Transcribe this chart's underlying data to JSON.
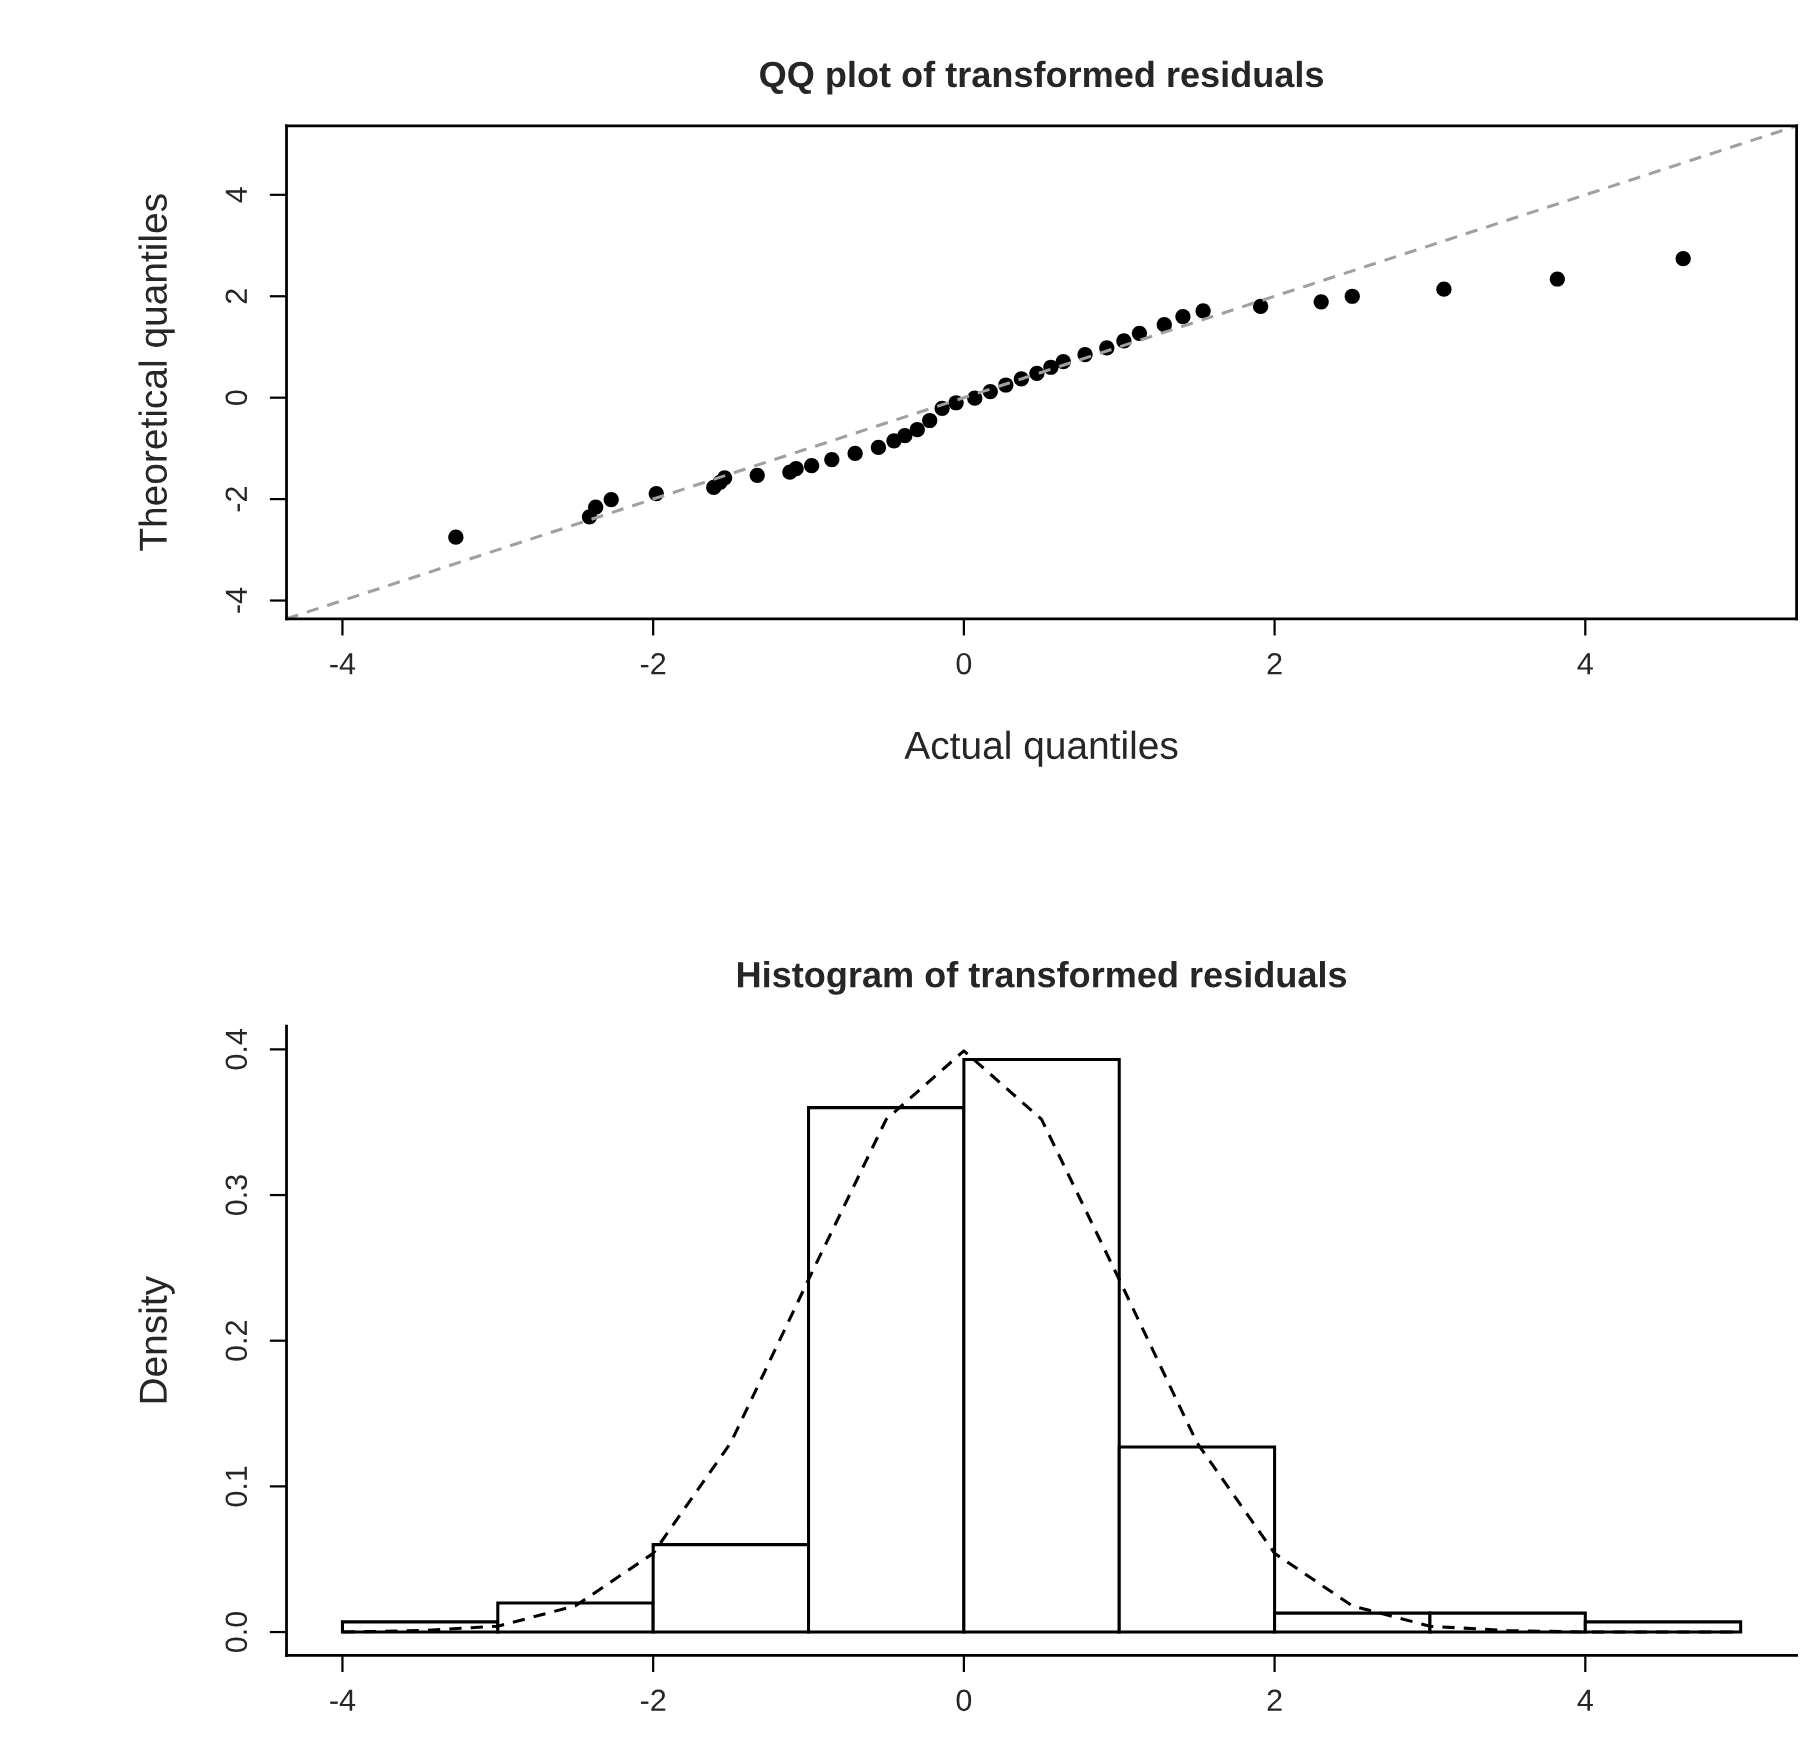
{
  "chart_data": [
    {
      "type": "scatter",
      "title": "QQ plot of transformed residuals",
      "xlabel": "Actual quantiles",
      "ylabel": "Theoretical quantiles",
      "xlim": [
        -4.36,
        5.36
      ],
      "ylim": [
        -4.36,
        5.36
      ],
      "xticks": [
        -4,
        -2,
        0,
        2,
        4
      ],
      "yticks": [
        -4,
        -2,
        0,
        2,
        4
      ],
      "series": [
        {
          "type": "scatter",
          "color": "#000000",
          "marker": "circle",
          "x": [
            -3.27,
            -2.41,
            -2.37,
            -2.27,
            -1.98,
            -1.61,
            -1.57,
            -1.54,
            -1.33,
            -1.12,
            -1.08,
            -0.98,
            -0.85,
            -0.7,
            -0.55,
            -0.45,
            -0.38,
            -0.3,
            -0.22,
            -0.14,
            -0.05,
            0.07,
            0.17,
            0.27,
            0.37,
            0.47,
            0.56,
            0.64,
            0.78,
            0.92,
            1.03,
            1.13,
            1.29,
            1.41,
            1.54,
            1.91,
            2.3,
            2.5,
            3.09,
            3.82,
            4.63
          ],
          "values": [
            -2.75,
            -2.35,
            -2.16,
            -2.01,
            -1.89,
            -1.77,
            -1.67,
            -1.58,
            -1.53,
            -1.47,
            -1.4,
            -1.34,
            -1.22,
            -1.1,
            -0.98,
            -0.85,
            -0.75,
            -0.63,
            -0.45,
            -0.21,
            -0.1,
            -0.01,
            0.12,
            0.25,
            0.37,
            0.48,
            0.6,
            0.71,
            0.85,
            0.98,
            1.12,
            1.27,
            1.44,
            1.6,
            1.71,
            1.8,
            1.89,
            2.0,
            2.14,
            2.34,
            2.74
          ]
        },
        {
          "type": "line",
          "color": "#a0a0a0",
          "line_style": "dashed",
          "x": [
            -4.36,
            5.36
          ],
          "values": [
            -4.36,
            5.36
          ]
        }
      ]
    },
    {
      "type": "histogram",
      "title": "Histogram of transformed residuals",
      "ylabel": "Density",
      "bins": [
        -4,
        -3,
        -2,
        -1,
        0,
        1,
        2,
        3,
        4,
        5
      ],
      "values": [
        0.007,
        0.02,
        0.06,
        0.36,
        0.393,
        0.127,
        0.013,
        0.013,
        0.007
      ],
      "color": "#ffffff",
      "xlim": [
        -4.36,
        5.36
      ],
      "ylim": [
        -0.016,
        0.416
      ],
      "xticks": [
        -4,
        -2,
        0,
        2,
        4
      ],
      "yticks": [
        {
          "value": 0,
          "label": "0.0"
        },
        {
          "value": 0.1,
          "label": "0.1"
        },
        {
          "value": 0.2,
          "label": "0.2"
        },
        {
          "value": 0.3,
          "label": "0.3"
        },
        {
          "value": 0.4,
          "label": "0.4"
        }
      ],
      "series": [
        {
          "type": "line",
          "color": "#000000",
          "line_style": "dashed",
          "x": [
            -4,
            -3.5,
            -3,
            -2.5,
            -2,
            -1.5,
            -1,
            -0.5,
            0,
            0.5,
            1,
            1.5,
            2,
            2.5,
            3,
            3.5,
            4,
            4.5,
            5
          ],
          "values": [
            0.0,
            0.001,
            0.004,
            0.018,
            0.054,
            0.13,
            0.242,
            0.352,
            0.399,
            0.352,
            0.242,
            0.13,
            0.054,
            0.018,
            0.004,
            0.001,
            0.0,
            0.0,
            0.0
          ]
        }
      ]
    }
  ]
}
